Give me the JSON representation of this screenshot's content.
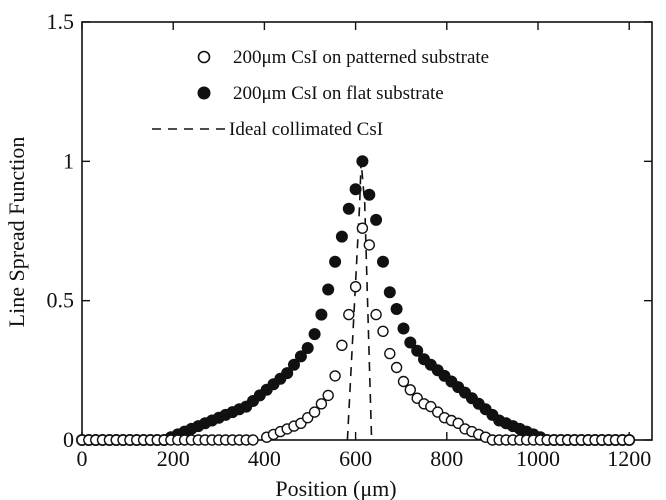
{
  "chart_data": {
    "type": "scatter",
    "title": "",
    "xlabel": "Position (μm)",
    "ylabel": "Line Spread Function",
    "xlim": [
      0,
      1250
    ],
    "ylim": [
      0,
      1.5
    ],
    "xticks": [
      0,
      200,
      400,
      600,
      800,
      1000,
      1200
    ],
    "xtick_labels": [
      "0",
      "200",
      "400",
      "600",
      "800",
      "1000",
      "1200"
    ],
    "yticks": [
      0,
      0.5,
      1,
      1.5
    ],
    "ytick_labels": [
      "0",
      "0.5",
      "1",
      "1.5"
    ],
    "grid": false,
    "legend_position": "top-right",
    "series": [
      {
        "name": "200μm CsI on patterned substrate",
        "marker": "open-circle",
        "x": [
          0,
          15,
          30,
          45,
          60,
          75,
          90,
          105,
          120,
          135,
          150,
          165,
          180,
          195,
          210,
          225,
          240,
          255,
          270,
          285,
          300,
          315,
          330,
          345,
          360,
          375,
          405,
          420,
          435,
          450,
          465,
          480,
          495,
          510,
          525,
          540,
          555,
          570,
          585,
          600,
          615,
          630,
          645,
          660,
          675,
          690,
          705,
          720,
          735,
          750,
          765,
          780,
          795,
          810,
          825,
          840,
          855,
          870,
          885,
          900,
          915,
          930,
          945,
          960,
          975,
          990,
          1005,
          1020,
          1035,
          1050,
          1065,
          1080,
          1095,
          1110,
          1125,
          1140,
          1155,
          1170,
          1185,
          1200
        ],
        "y": [
          0,
          0,
          0,
          0,
          0,
          0,
          0,
          0,
          0,
          0,
          0,
          0,
          0,
          0,
          0,
          0,
          0,
          0,
          0,
          0,
          0,
          0,
          0,
          0,
          0,
          0,
          0.01,
          0.02,
          0.03,
          0.04,
          0.05,
          0.06,
          0.08,
          0.1,
          0.13,
          0.16,
          0.23,
          0.34,
          0.45,
          0.55,
          0.76,
          0.7,
          0.45,
          0.39,
          0.31,
          0.26,
          0.21,
          0.18,
          0.15,
          0.13,
          0.12,
          0.1,
          0.08,
          0.07,
          0.06,
          0.04,
          0.03,
          0.02,
          0.01,
          0,
          0,
          0,
          0,
          0,
          0,
          0,
          0,
          0,
          0,
          0,
          0,
          0,
          0,
          0,
          0,
          0,
          0,
          0,
          0,
          0
        ]
      },
      {
        "name": "200μm CsI on flat substrate",
        "marker": "filled-circle",
        "x": [
          0,
          15,
          30,
          45,
          60,
          75,
          90,
          105,
          120,
          135,
          150,
          165,
          180,
          195,
          210,
          225,
          240,
          255,
          270,
          285,
          300,
          315,
          330,
          345,
          360,
          375,
          390,
          405,
          420,
          435,
          450,
          465,
          480,
          495,
          510,
          525,
          540,
          555,
          570,
          585,
          600,
          615,
          630,
          645,
          660,
          675,
          690,
          705,
          720,
          735,
          750,
          765,
          780,
          795,
          810,
          825,
          840,
          855,
          870,
          885,
          900,
          915,
          930,
          945,
          960,
          975,
          990,
          1005,
          1020,
          1035,
          1050,
          1065,
          1080,
          1095,
          1110,
          1125,
          1140,
          1155,
          1170,
          1185,
          1200
        ],
        "y": [
          0,
          0,
          0,
          0,
          0,
          0,
          0,
          0,
          0,
          0,
          0,
          0,
          0,
          0.01,
          0.02,
          0.03,
          0.04,
          0.05,
          0.06,
          0.07,
          0.08,
          0.09,
          0.1,
          0.11,
          0.12,
          0.14,
          0.16,
          0.18,
          0.2,
          0.22,
          0.24,
          0.27,
          0.3,
          0.33,
          0.38,
          0.45,
          0.54,
          0.64,
          0.73,
          0.83,
          0.9,
          1.0,
          0.88,
          0.79,
          0.64,
          0.53,
          0.47,
          0.4,
          0.35,
          0.32,
          0.29,
          0.27,
          0.25,
          0.23,
          0.21,
          0.19,
          0.17,
          0.15,
          0.13,
          0.11,
          0.09,
          0.07,
          0.06,
          0.05,
          0.04,
          0.03,
          0.02,
          0.01,
          0,
          0,
          0,
          0,
          0,
          0,
          0,
          0,
          0,
          0,
          0,
          0,
          0
        ]
      },
      {
        "name": "Ideal collimated CsI",
        "marker": "dashed-line",
        "x": [
          582,
          609,
          612,
          620,
          635
        ],
        "y": [
          0,
          0.85,
          1.0,
          0.85,
          0
        ]
      }
    ]
  }
}
